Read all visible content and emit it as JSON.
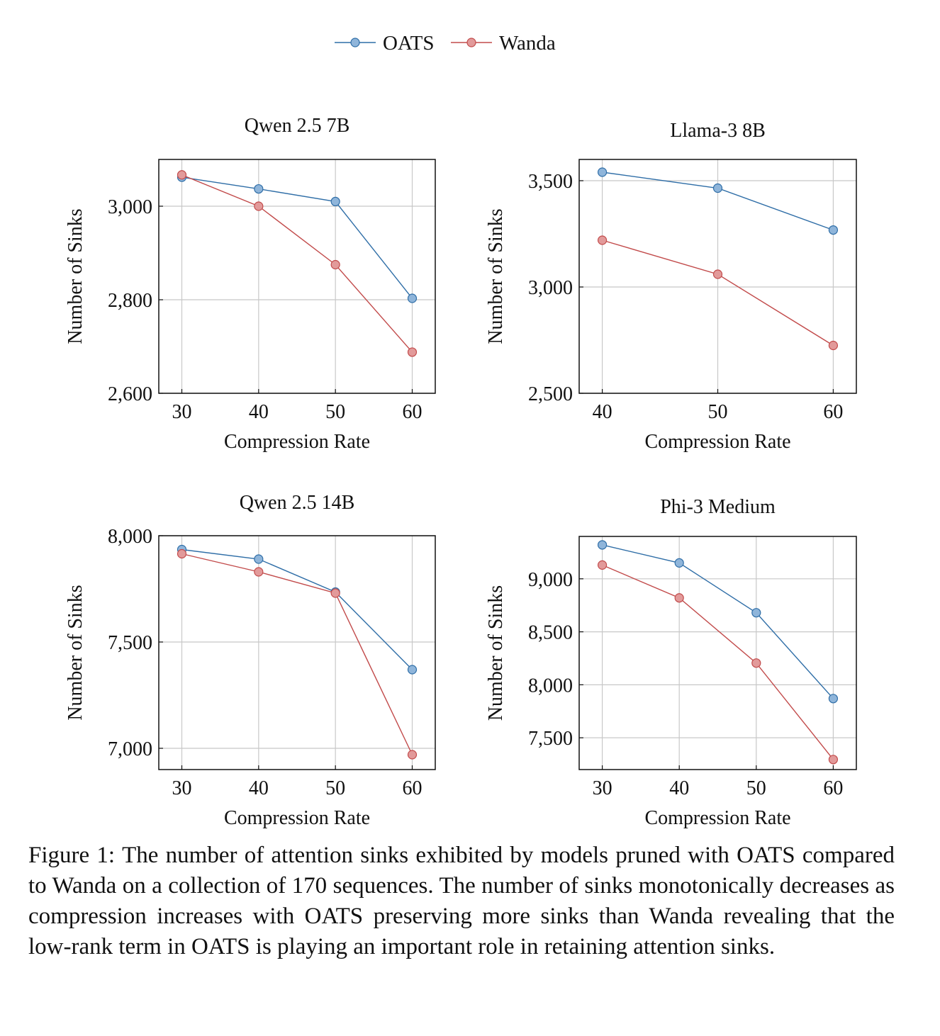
{
  "legend": {
    "position": "top-center",
    "entries": [
      {
        "name": "OATS",
        "color": "#2f6ea7",
        "marker_fill": "#8fb5da"
      },
      {
        "name": "Wanda",
        "color": "#c24b4b",
        "marker_fill": "#e29a9a"
      }
    ]
  },
  "chart_data": [
    {
      "type": "line",
      "title": "Qwen 2.5 7B",
      "xlabel": "Compression Rate",
      "ylabel": "Number of Sinks",
      "x": [
        30,
        40,
        50,
        60
      ],
      "xticks": [
        "30",
        "40",
        "50",
        "60"
      ],
      "xlim": [
        27,
        63
      ],
      "ylim": [
        2600,
        3100
      ],
      "yticks": [
        2600,
        2800,
        3000
      ],
      "ytick_labels": [
        "2,600",
        "2,800",
        "3,000"
      ],
      "grid": true,
      "series": [
        {
          "name": "OATS",
          "values": [
            3062,
            3037,
            3010,
            2803
          ]
        },
        {
          "name": "Wanda",
          "values": [
            3067,
            3000,
            2875,
            2688
          ]
        }
      ]
    },
    {
      "type": "line",
      "title": "Llama-3 8B",
      "xlabel": "Compression Rate",
      "ylabel": "Number of Sinks",
      "x": [
        40,
        50,
        60
      ],
      "xticks": [
        "40",
        "50",
        "60"
      ],
      "xlim": [
        38,
        62
      ],
      "ylim": [
        2500,
        3600
      ],
      "yticks": [
        2500,
        3000,
        3500
      ],
      "ytick_labels": [
        "2,500",
        "3,000",
        "3,500"
      ],
      "grid": true,
      "series": [
        {
          "name": "OATS",
          "values": [
            3540,
            3465,
            3268
          ]
        },
        {
          "name": "Wanda",
          "values": [
            3220,
            3060,
            2725
          ]
        }
      ]
    },
    {
      "type": "line",
      "title": "Qwen 2.5 14B",
      "xlabel": "Compression Rate",
      "ylabel": "Number of Sinks",
      "x": [
        30,
        40,
        50,
        60
      ],
      "xticks": [
        "30",
        "40",
        "50",
        "60"
      ],
      "xlim": [
        27,
        63
      ],
      "ylim": [
        6900,
        8000
      ],
      "yticks": [
        7000,
        7500,
        8000
      ],
      "ytick_labels": [
        "7,000",
        "7,500",
        "8,000"
      ],
      "grid": true,
      "series": [
        {
          "name": "OATS",
          "values": [
            7935,
            7890,
            7735,
            7370
          ]
        },
        {
          "name": "Wanda",
          "values": [
            7915,
            7830,
            7730,
            6970
          ]
        }
      ]
    },
    {
      "type": "line",
      "title": "Phi-3 Medium",
      "xlabel": "Compression Rate",
      "ylabel": "Number of Sinks",
      "x": [
        30,
        40,
        50,
        60
      ],
      "xticks": [
        "30",
        "40",
        "50",
        "60"
      ],
      "xlim": [
        27,
        63
      ],
      "ylim": [
        7200,
        9400
      ],
      "yticks": [
        7500,
        8000,
        8500,
        9000
      ],
      "ytick_labels": [
        "7,500",
        "8,000",
        "8,500",
        "9,000"
      ],
      "grid": true,
      "series": [
        {
          "name": "OATS",
          "values": [
            9320,
            9150,
            8680,
            7870
          ]
        },
        {
          "name": "Wanda",
          "values": [
            9130,
            8820,
            8205,
            7295
          ]
        }
      ]
    }
  ],
  "caption": {
    "label": "Figure 1:",
    "text": "The number of attention sinks exhibited by models pruned with OATS compared to Wanda on a collection of 170 sequences. The number of sinks monotonically decreases as compression increases with OATS preserving more sinks than Wanda revealing that the low-rank term in OATS is playing an important role in retaining attention sinks."
  }
}
